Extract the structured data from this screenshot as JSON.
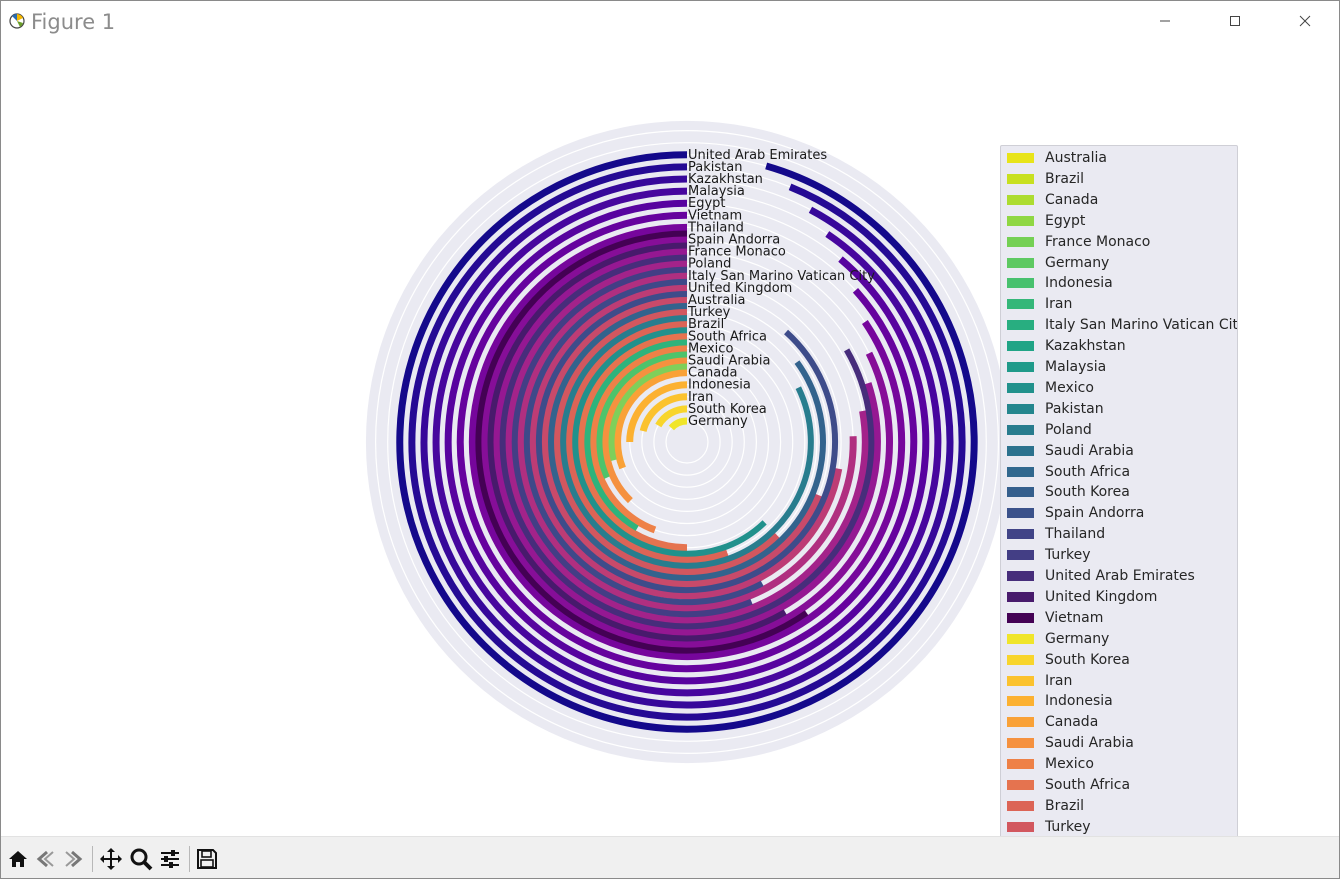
{
  "window": {
    "title": "Figure 1"
  },
  "toolbar": {
    "buttons": [
      "home-icon",
      "back-icon",
      "forward-icon",
      "pan-icon",
      "zoom-icon",
      "configure-subplots-icon",
      "save-icon"
    ]
  },
  "chart_data": {
    "type": "radial-bar",
    "grid": true,
    "legend_position": "right",
    "bars": [
      {
        "label": "Germany",
        "value": 24,
        "color": "#f0e52a"
      },
      {
        "label": "South Korea",
        "value": 30,
        "color": "#f8d52c"
      },
      {
        "label": "Iran",
        "value": 38,
        "color": "#fbc22e"
      },
      {
        "label": "Indonesia",
        "value": 45,
        "color": "#fcb131"
      },
      {
        "label": "Canada",
        "value": 56,
        "color": "#f9a137"
      },
      {
        "label": "Saudi Arabia",
        "value": 68,
        "color": "#f5913f"
      },
      {
        "label": "Mexico",
        "value": 80,
        "color": "#ee8147"
      },
      {
        "label": "South Africa",
        "value": 90,
        "color": "#e5734f"
      },
      {
        "label": "Brazil",
        "value": 100,
        "color": "#dc6456"
      },
      {
        "label": "Turkey",
        "value": 112,
        "color": "#d2575f"
      },
      {
        "label": "Australia",
        "value": 124,
        "color": "#c84a6a"
      },
      {
        "label": "United Kingdom",
        "value": 130,
        "color": "#bd3c75"
      },
      {
        "label": "Italy  San Marino  Vatican City",
        "value": 136,
        "color": "#b02f80"
      },
      {
        "label": "Poland",
        "value": 140,
        "color": "#a3238a"
      },
      {
        "label": "France  Monaco",
        "value": 144,
        "color": "#951892"
      },
      {
        "label": "Spain  Andorra",
        "value": 148,
        "color": "#860e98"
      },
      {
        "label": "Thailand",
        "value": 152,
        "color": "#76069c"
      },
      {
        "label": "Vietnam",
        "value": 156,
        "color": "#66029e"
      },
      {
        "label": "Egypt",
        "value": 160,
        "color": "#57039f"
      },
      {
        "label": "Malaysia",
        "value": 163,
        "color": "#47069e"
      },
      {
        "label": "Kazakhstan",
        "value": 166,
        "color": "#37089a"
      },
      {
        "label": "Pakistan",
        "value": 169,
        "color": "#250a94"
      },
      {
        "label": "United Arab Emirates",
        "value": 172,
        "color": "#14098b"
      }
    ],
    "secondary_bars": [
      {
        "label": "Egypt",
        "value": 104,
        "color": "#7fcf5a"
      },
      {
        "label": "Germany",
        "value": 114,
        "color": "#4ec36b"
      },
      {
        "label": "Indonesia",
        "value": 150,
        "color": "#2eb37c"
      },
      {
        "label": "Kazakhstan",
        "value": 224,
        "color": "#21918c"
      },
      {
        "label": "Saudi Arabia",
        "value": 296,
        "color": "#287d8e"
      },
      {
        "label": "South Africa",
        "value": 306,
        "color": "#33638d"
      },
      {
        "label": "South Korea",
        "value": 318,
        "color": "#3e4c8a"
      },
      {
        "label": "Spain  Andorra",
        "value": 208,
        "color": "#3e4989"
      },
      {
        "label": "Thailand",
        "value": 202,
        "color": "#433e85"
      },
      {
        "label": "United Arab Emirates",
        "value": 300,
        "color": "#472d7b"
      },
      {
        "label": "United Kingdom",
        "value": 210,
        "color": "#481a6c"
      },
      {
        "label": "Vietnam",
        "value": 215,
        "color": "#440154"
      }
    ],
    "legend": [
      {
        "label": "Australia",
        "color": "#e8e419"
      },
      {
        "label": "Brazil",
        "color": "#c8e020"
      },
      {
        "label": "Canada",
        "color": "#addc30"
      },
      {
        "label": "Egypt",
        "color": "#90d743"
      },
      {
        "label": "France  Monaco",
        "color": "#75d054"
      },
      {
        "label": "Germany",
        "color": "#5ec962"
      },
      {
        "label": "Indonesia",
        "color": "#48c16e"
      },
      {
        "label": "Iran",
        "color": "#35b779"
      },
      {
        "label": "Italy  San Marino  Vatican City",
        "color": "#28ae80"
      },
      {
        "label": "Kazakhstan",
        "color": "#20a486"
      },
      {
        "label": "Malaysia",
        "color": "#1f9a8a"
      },
      {
        "label": "Mexico",
        "color": "#21918c"
      },
      {
        "label": "Pakistan",
        "color": "#24868e"
      },
      {
        "label": "Poland",
        "color": "#287c8e"
      },
      {
        "label": "Saudi Arabia",
        "color": "#2c728e"
      },
      {
        "label": "South Africa",
        "color": "#31688e"
      },
      {
        "label": "South Korea",
        "color": "#355f8d"
      },
      {
        "label": "Spain  Andorra",
        "color": "#3b528b"
      },
      {
        "label": "Thailand",
        "color": "#414487"
      },
      {
        "label": "Turkey",
        "color": "#433e85"
      },
      {
        "label": "United Arab Emirates",
        "color": "#472d7b"
      },
      {
        "label": "United Kingdom",
        "color": "#481a6c"
      },
      {
        "label": "Vietnam",
        "color": "#440154"
      },
      {
        "label": "Germany",
        "color": "#f0e52a"
      },
      {
        "label": "South Korea",
        "color": "#f8d52c"
      },
      {
        "label": "Iran",
        "color": "#fbc22e"
      },
      {
        "label": "Indonesia",
        "color": "#fcb131"
      },
      {
        "label": "Canada",
        "color": "#f9a137"
      },
      {
        "label": "Saudi Arabia",
        "color": "#f5913f"
      },
      {
        "label": "Mexico",
        "color": "#ee8147"
      },
      {
        "label": "South Africa",
        "color": "#e5734f"
      },
      {
        "label": "Brazil",
        "color": "#dc6456"
      },
      {
        "label": "Turkey",
        "color": "#d2575f"
      }
    ]
  }
}
